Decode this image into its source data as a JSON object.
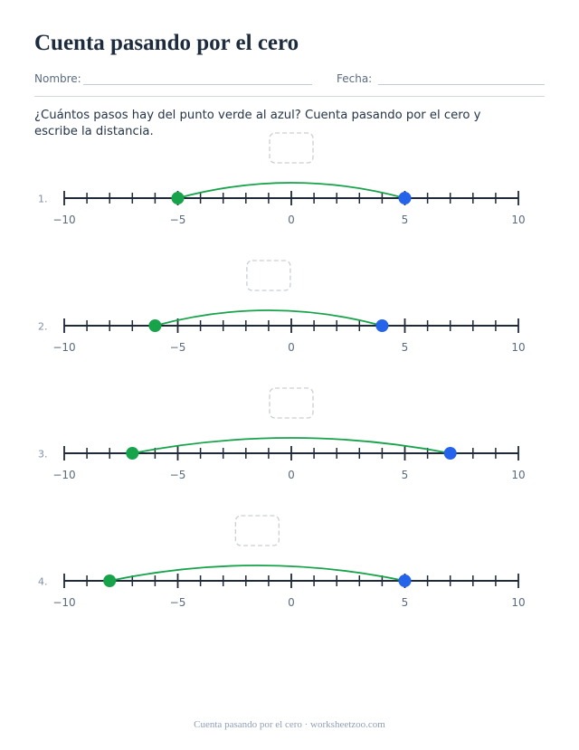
{
  "title": "Cuenta pasando por el cero",
  "fields": {
    "name_label": "Nombre:",
    "date_label": "Fecha:"
  },
  "instruction": "¿Cuántos pasos hay del punto verde al azul? Cuenta pasando por el cero y escribe la distancia.",
  "number_line": {
    "min": -10,
    "max": 10,
    "labeled_ticks": [
      "−10",
      "−5",
      "0",
      "5",
      "10"
    ]
  },
  "problems": [
    {
      "label": "1.",
      "start": -5,
      "end": 5
    },
    {
      "label": "2.",
      "start": -6,
      "end": 4
    },
    {
      "label": "3.",
      "start": -7,
      "end": 7
    },
    {
      "label": "4.",
      "start": -8,
      "end": 5
    }
  ],
  "colors": {
    "start_point": "#16a34a",
    "end_point": "#2563eb",
    "axis": "#1f2937",
    "tick_label": "#5b6b80",
    "answer_box": "#c9ced6"
  },
  "footer": "Cuenta pasando por el cero · worksheetzoo.com"
}
